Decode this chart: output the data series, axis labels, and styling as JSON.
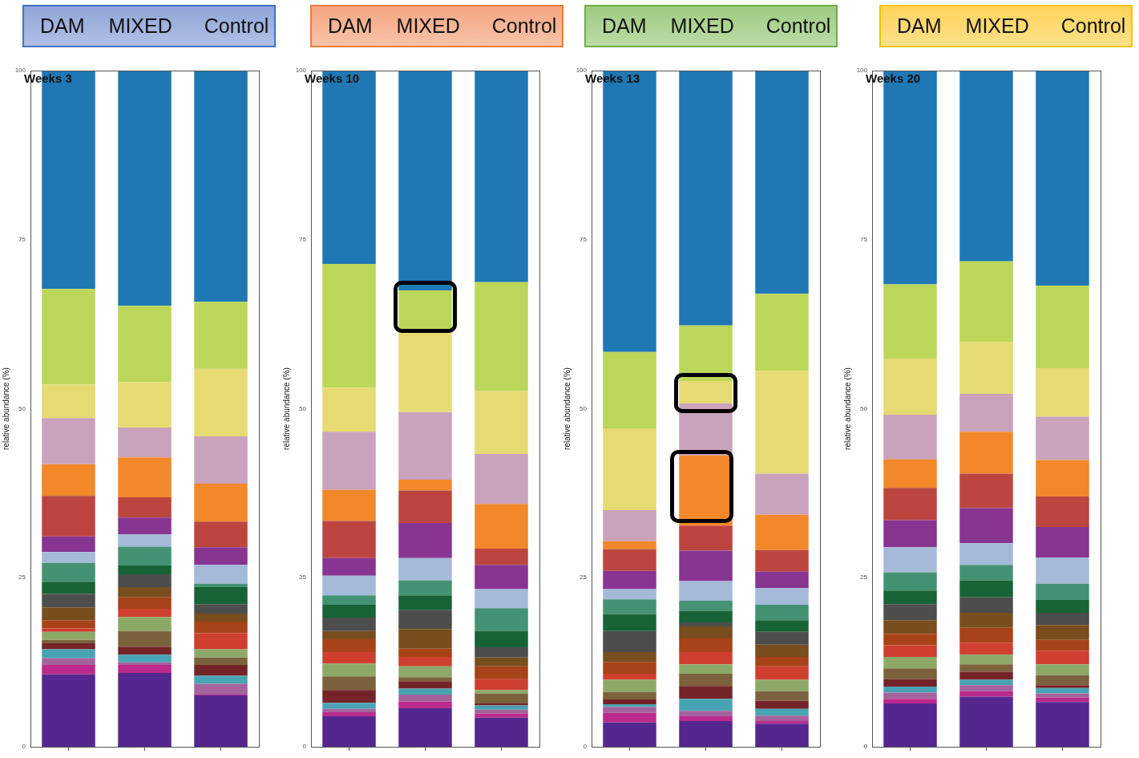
{
  "chart_data": [
    {
      "type": "bar",
      "stacked": true,
      "title": "Weeks 3",
      "ylabel": "relative abundance (%)",
      "categories": [
        "DAM",
        "MIXED",
        "Control"
      ],
      "ylim": [
        0,
        100
      ],
      "yticks": [
        0,
        25,
        50,
        75,
        100
      ],
      "tick_labels": "y",
      "grid": false,
      "series": [
        {
          "color": "#54278f",
          "values": [
            10.7,
            10.9,
            7.6
          ]
        },
        {
          "color": "#bb2a8c",
          "values": [
            1.4,
            1.2,
            0.1
          ]
        },
        {
          "color": "#a4629e",
          "values": [
            1.0,
            0.4,
            1.6
          ]
        },
        {
          "color": "#48a4b2",
          "values": [
            1.3,
            1.1,
            1.2
          ]
        },
        {
          "color": "#742428",
          "values": [
            0.9,
            1.2,
            1.6
          ]
        },
        {
          "color": "#7b623d",
          "values": [
            0.5,
            2.3,
            1.1
          ]
        },
        {
          "color": "#8ca968",
          "values": [
            1.2,
            2.1,
            1.2
          ]
        },
        {
          "color": "#ce3f30",
          "values": [
            0.5,
            1.2,
            2.4
          ]
        },
        {
          "color": "#a84218",
          "values": [
            1.2,
            1.7,
            1.7
          ]
        },
        {
          "color": "#784e1e",
          "values": [
            1.9,
            1.5,
            1.2
          ]
        },
        {
          "color": "#4d4d4d",
          "values": [
            2.0,
            1.9,
            1.4
          ]
        },
        {
          "color": "#186336",
          "values": [
            1.8,
            1.3,
            2.5
          ]
        },
        {
          "color": "#449274",
          "values": [
            2.8,
            2.8,
            0.5
          ]
        },
        {
          "color": "#a5b9d8",
          "values": [
            1.6,
            1.8,
            2.8
          ]
        },
        {
          "color": "#883491",
          "values": [
            2.3,
            2.5,
            2.6
          ]
        },
        {
          "color": "#bd4540",
          "values": [
            6.0,
            3.0,
            3.8
          ]
        },
        {
          "color": "#f2882a",
          "values": [
            4.7,
            5.9,
            5.6
          ]
        },
        {
          "color": "#c9a2bb",
          "values": [
            6.8,
            4.4,
            7.0
          ]
        },
        {
          "color": "#e5db72",
          "values": [
            5.0,
            6.7,
            10.0
          ]
        },
        {
          "color": "#bcd659",
          "values": [
            14.1,
            11.3,
            9.9
          ]
        },
        {
          "color": "#1f78b4",
          "values": [
            32.3,
            34.8,
            34.2
          ]
        }
      ]
    },
    {
      "type": "bar",
      "stacked": true,
      "title": "Weeks 10",
      "ylabel": "relative abundance (%)",
      "categories": [
        "DAM",
        "MIXED",
        "Control"
      ],
      "ylim": [
        0,
        100
      ],
      "yticks": [
        0,
        25,
        50,
        75,
        100
      ],
      "tick_labels": "y",
      "grid": false,
      "series": [
        {
          "color": "#54278f",
          "values": [
            4.5,
            5.7,
            4.3
          ]
        },
        {
          "color": "#bb2a8c",
          "values": [
            0.6,
            1.0,
            0.6
          ]
        },
        {
          "color": "#a4629e",
          "values": [
            0.5,
            1.0,
            0.6
          ]
        },
        {
          "color": "#48a4b2",
          "values": [
            0.9,
            0.9,
            0.6
          ]
        },
        {
          "color": "#742428",
          "values": [
            1.9,
            1.1,
            0.3
          ]
        },
        {
          "color": "#7b623d",
          "values": [
            2.0,
            0.6,
            1.5
          ]
        },
        {
          "color": "#8ca968",
          "values": [
            1.9,
            1.6,
            0.5
          ]
        },
        {
          "color": "#ce3f30",
          "values": [
            1.7,
            1.4,
            1.6
          ]
        },
        {
          "color": "#a84218",
          "values": [
            1.9,
            1.2,
            1.9
          ]
        },
        {
          "color": "#784e1e",
          "values": [
            1.2,
            2.9,
            1.3
          ]
        },
        {
          "color": "#4d4d4d",
          "values": [
            2.0,
            2.8,
            1.5
          ]
        },
        {
          "color": "#186336",
          "values": [
            1.9,
            2.2,
            2.4
          ]
        },
        {
          "color": "#449274",
          "values": [
            1.4,
            2.2,
            3.4
          ]
        },
        {
          "color": "#a5b9d8",
          "values": [
            2.9,
            3.3,
            2.8
          ]
        },
        {
          "color": "#883491",
          "values": [
            2.6,
            5.2,
            3.6
          ]
        },
        {
          "color": "#bd4540",
          "values": [
            5.5,
            4.8,
            2.4
          ]
        },
        {
          "color": "#f2882a",
          "values": [
            4.6,
            1.6,
            6.6
          ]
        },
        {
          "color": "#c9a2bb",
          "values": [
            8.6,
            10.0,
            7.4
          ]
        },
        {
          "color": "#e5db72",
          "values": [
            6.5,
            11.7,
            9.3
          ]
        },
        {
          "color": "#bcd659",
          "values": [
            18.3,
            6.3,
            16.1
          ]
        },
        {
          "color": "#1f78b4",
          "values": [
            28.6,
            32.5,
            31.3
          ]
        }
      ]
    },
    {
      "type": "bar",
      "stacked": true,
      "title": "Weeks 13",
      "ylabel": "relative abundance (%)",
      "categories": [
        "DAM",
        "MIXED",
        "Control"
      ],
      "ylim": [
        0,
        100
      ],
      "yticks": [
        0,
        25,
        50,
        75,
        100
      ],
      "tick_labels": "y",
      "grid": false,
      "series": [
        {
          "color": "#54278f",
          "values": [
            3.6,
            3.8,
            3.4
          ]
        },
        {
          "color": "#bb2a8c",
          "values": [
            1.4,
            0.7,
            0.4
          ]
        },
        {
          "color": "#a4629e",
          "values": [
            0.9,
            0.8,
            0.8
          ]
        },
        {
          "color": "#48a4b2",
          "values": [
            0.4,
            1.8,
            1.0
          ]
        },
        {
          "color": "#742428",
          "values": [
            0.7,
            1.9,
            1.2
          ]
        },
        {
          "color": "#7b623d",
          "values": [
            1.1,
            1.8,
            1.4
          ]
        },
        {
          "color": "#8ca968",
          "values": [
            1.8,
            1.4,
            1.7
          ]
        },
        {
          "color": "#ce3f30",
          "values": [
            0.9,
            1.8,
            2.0
          ]
        },
        {
          "color": "#a84218",
          "values": [
            1.7,
            2.0,
            1.4
          ]
        },
        {
          "color": "#784e1e",
          "values": [
            1.5,
            1.8,
            1.8
          ]
        },
        {
          "color": "#4d4d4d",
          "values": [
            3.1,
            0.6,
            1.9
          ]
        },
        {
          "color": "#186336",
          "values": [
            2.5,
            1.7,
            1.7
          ]
        },
        {
          "color": "#449274",
          "values": [
            2.2,
            1.5,
            2.3
          ]
        },
        {
          "color": "#a5b9d8",
          "values": [
            1.5,
            2.9,
            2.5
          ]
        },
        {
          "color": "#883491",
          "values": [
            2.7,
            4.5,
            2.4
          ]
        },
        {
          "color": "#bd4540",
          "values": [
            3.2,
            3.7,
            3.2
          ]
        },
        {
          "color": "#f2882a",
          "values": [
            1.2,
            10.4,
            5.2
          ]
        },
        {
          "color": "#c9a2bb",
          "values": [
            4.6,
            7.7,
            6.1
          ]
        },
        {
          "color": "#e5db72",
          "values": [
            12.1,
            3.3,
            15.2
          ]
        },
        {
          "color": "#bcd659",
          "values": [
            11.3,
            8.2,
            11.4
          ]
        },
        {
          "color": "#1f78b4",
          "values": [
            41.6,
            37.7,
            33.0
          ]
        }
      ]
    },
    {
      "type": "bar",
      "stacked": true,
      "title": "Weeks 20",
      "ylabel": "relative abundance (%)",
      "categories": [
        "DAM",
        "MIXED",
        "Control"
      ],
      "ylim": [
        0,
        100
      ],
      "yticks": [
        0,
        25,
        50,
        75,
        100
      ],
      "tick_labels": "y",
      "grid": false,
      "series": [
        {
          "color": "#54278f",
          "values": [
            6.4,
            7.4,
            6.6
          ]
        },
        {
          "color": "#bb2a8c",
          "values": [
            0.7,
            0.8,
            0.7
          ]
        },
        {
          "color": "#a4629e",
          "values": [
            0.9,
            0.9,
            0.6
          ]
        },
        {
          "color": "#48a4b2",
          "values": [
            0.9,
            0.8,
            0.8
          ]
        },
        {
          "color": "#742428",
          "values": [
            1.1,
            1.2,
            0.4
          ]
        },
        {
          "color": "#7b623d",
          "values": [
            1.6,
            1.1,
            1.5
          ]
        },
        {
          "color": "#8ca968",
          "values": [
            1.7,
            1.4,
            1.6
          ]
        },
        {
          "color": "#ce3f30",
          "values": [
            1.7,
            1.8,
            2.0
          ]
        },
        {
          "color": "#a84218",
          "values": [
            1.7,
            2.2,
            1.6
          ]
        },
        {
          "color": "#784e1e",
          "values": [
            2.0,
            2.2,
            2.2
          ]
        },
        {
          "color": "#4d4d4d",
          "values": [
            2.4,
            2.3,
            1.8
          ]
        },
        {
          "color": "#186336",
          "values": [
            2.0,
            2.5,
            1.9
          ]
        },
        {
          "color": "#449274",
          "values": [
            2.7,
            2.3,
            2.4
          ]
        },
        {
          "color": "#a5b9d8",
          "values": [
            3.7,
            3.2,
            3.9
          ]
        },
        {
          "color": "#883491",
          "values": [
            4.0,
            5.2,
            4.5
          ]
        },
        {
          "color": "#bd4540",
          "values": [
            4.8,
            5.1,
            4.5
          ]
        },
        {
          "color": "#f2882a",
          "values": [
            4.2,
            6.2,
            5.4
          ]
        },
        {
          "color": "#c9a2bb",
          "values": [
            6.6,
            5.6,
            6.4
          ]
        },
        {
          "color": "#e5db72",
          "values": [
            8.3,
            7.7,
            7.2
          ]
        },
        {
          "color": "#bcd659",
          "values": [
            11.0,
            11.9,
            12.2
          ]
        },
        {
          "color": "#1f78b4",
          "values": [
            31.6,
            28.2,
            31.8
          ]
        }
      ]
    }
  ]
}
